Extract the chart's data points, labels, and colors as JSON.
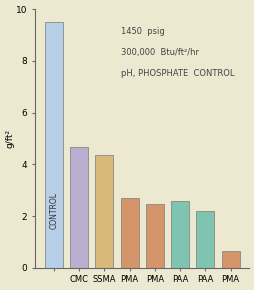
{
  "categories": [
    "CMC",
    "SSMA",
    "PMA",
    "PMA",
    "PAA",
    "PAA",
    "PMA"
  ],
  "values": [
    9.5,
    4.65,
    4.35,
    2.7,
    2.45,
    2.6,
    2.2,
    0.65
  ],
  "bar_colors": [
    "#b8cfe8",
    "#bbaed0",
    "#d9b97a",
    "#d4956a",
    "#d4956a",
    "#7ec4b0",
    "#7ec4b0",
    "#d4956a"
  ],
  "bar_edgecolors": [
    "#888888",
    "#888888",
    "#888888",
    "#888888",
    "#888888",
    "#888888",
    "#888888",
    "#888888"
  ],
  "first_label": "CONTROL",
  "annotation_line1": "1450  psig",
  "annotation_line2": "300,000  Btu/ft²/hr",
  "annotation_line3": "pH, PHOSPHATE  CONTROL",
  "ylabel": "g/ft²",
  "ylim": [
    0,
    10
  ],
  "yticks": [
    0,
    2,
    4,
    6,
    8,
    10
  ],
  "background_color": "#ede8d0",
  "bar_width": 0.72,
  "tick_fontsize": 6.5,
  "label_fontsize": 6.0,
  "annot_fontsize": 6.0
}
